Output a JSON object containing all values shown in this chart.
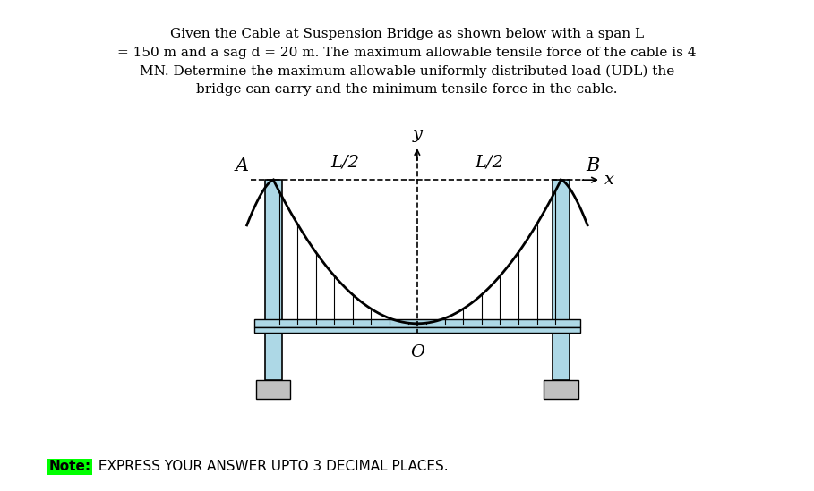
{
  "title_text": "Given the Cable at Suspension Bridge as shown below with a span L\n= 150 m and a sag d = 20 m. The maximum allowable tensile force of the cable is 4\nMN. Determine the maximum allowable uniformly distributed load (UDL) the\nbridge can carry and the minimum tensile force in the cable.",
  "note_text": "Note:",
  "note_highlight_color": "#00FF00",
  "note_rest": " EXPRESS YOUR ANSWER UPTO 3 DECIMAL PLACES.",
  "label_A": "A",
  "label_B": "B",
  "label_O": "O",
  "label_x": "x",
  "label_y": "y",
  "label_L2_left": "L/2",
  "label_L2_right": "L/2",
  "tower_color": "#ADD8E6",
  "tower_border": "#000000",
  "cable_color": "#000000",
  "deck_color": "#ADD8E6",
  "hanger_color": "#000000",
  "background_color": "#FFFFFF",
  "fig_width": 9.09,
  "fig_height": 5.49,
  "dpi": 100
}
